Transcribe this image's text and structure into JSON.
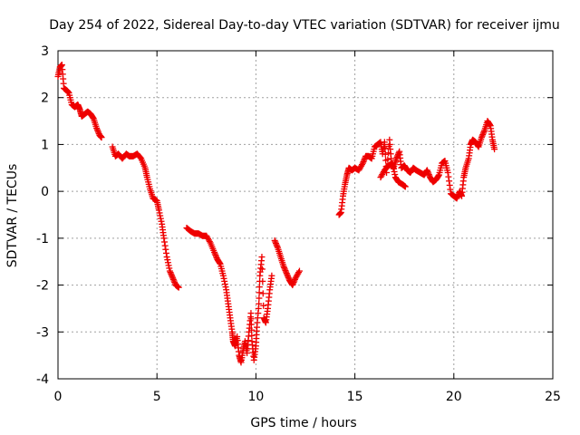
{
  "chart_data": {
    "type": "scatter",
    "title": "Day 254 of 2022, Sidereal Day-to-day VTEC variation (SDTVAR) for receiver ijmu",
    "xlabel": "GPS time / hours",
    "ylabel": "SDTVAR / TECUs",
    "xlim": [
      0,
      25
    ],
    "ylim": [
      -4,
      3
    ],
    "x_ticks": [
      "0",
      "5",
      "10",
      "15",
      "20",
      "25"
    ],
    "y_ticks": [
      "3",
      "2",
      "1",
      "0",
      "-1",
      "-2",
      "-3",
      "-4"
    ],
    "grid": true,
    "marker": "+",
    "color": "#ee0000",
    "series": [
      {
        "name": "segment-1",
        "points": [
          [
            0.0,
            2.45
          ],
          [
            0.1,
            2.65
          ],
          [
            0.2,
            2.7
          ],
          [
            0.3,
            2.2
          ],
          [
            0.45,
            2.15
          ],
          [
            0.55,
            2.1
          ],
          [
            0.7,
            1.85
          ],
          [
            0.85,
            1.8
          ],
          [
            1.0,
            1.85
          ],
          [
            1.1,
            1.75
          ],
          [
            1.2,
            1.6
          ],
          [
            1.35,
            1.65
          ],
          [
            1.5,
            1.7
          ],
          [
            1.65,
            1.65
          ],
          [
            1.8,
            1.55
          ],
          [
            1.95,
            1.35
          ],
          [
            2.1,
            1.2
          ],
          [
            2.2,
            1.15
          ]
        ]
      },
      {
        "name": "segment-2",
        "points": [
          [
            2.75,
            0.95
          ],
          [
            2.9,
            0.75
          ],
          [
            3.05,
            0.8
          ],
          [
            3.25,
            0.7
          ],
          [
            3.45,
            0.8
          ],
          [
            3.6,
            0.75
          ],
          [
            3.8,
            0.75
          ],
          [
            4.0,
            0.8
          ],
          [
            4.2,
            0.7
          ],
          [
            4.4,
            0.5
          ],
          [
            4.5,
            0.3
          ],
          [
            4.65,
            0.05
          ],
          [
            4.8,
            -0.15
          ],
          [
            5.0,
            -0.2
          ],
          [
            5.1,
            -0.4
          ],
          [
            5.25,
            -0.7
          ],
          [
            5.35,
            -1.0
          ],
          [
            5.5,
            -1.4
          ],
          [
            5.65,
            -1.7
          ],
          [
            5.8,
            -1.85
          ],
          [
            5.95,
            -2.0
          ],
          [
            6.1,
            -2.05
          ]
        ]
      },
      {
        "name": "segment-3",
        "points": [
          [
            6.5,
            -0.78
          ],
          [
            6.7,
            -0.85
          ],
          [
            6.9,
            -0.9
          ],
          [
            7.1,
            -0.9
          ],
          [
            7.3,
            -0.95
          ],
          [
            7.5,
            -0.95
          ],
          [
            7.7,
            -1.1
          ],
          [
            7.9,
            -1.3
          ],
          [
            8.05,
            -1.45
          ],
          [
            8.2,
            -1.55
          ],
          [
            8.35,
            -1.8
          ],
          [
            8.5,
            -2.1
          ],
          [
            8.6,
            -2.4
          ],
          [
            8.7,
            -2.7
          ],
          [
            8.8,
            -3.0
          ],
          [
            8.85,
            -3.2
          ],
          [
            8.95,
            -3.3
          ],
          [
            9.05,
            -3.1
          ],
          [
            9.15,
            -3.5
          ],
          [
            9.25,
            -3.65
          ],
          [
            9.35,
            -3.4
          ],
          [
            9.45,
            -3.2
          ],
          [
            9.55,
            -3.45
          ],
          [
            9.65,
            -3.0
          ],
          [
            9.75,
            -2.6
          ],
          [
            9.8,
            -3.2
          ],
          [
            9.9,
            -3.6
          ],
          [
            10.0,
            -3.3
          ],
          [
            10.05,
            -2.9
          ],
          [
            10.15,
            -2.4
          ],
          [
            10.2,
            -1.8
          ],
          [
            10.3,
            -1.4
          ],
          [
            10.4,
            -2.7
          ],
          [
            10.5,
            -2.8
          ],
          [
            10.6,
            -2.5
          ],
          [
            10.7,
            -2.1
          ],
          [
            10.8,
            -1.8
          ]
        ]
      },
      {
        "name": "segment-4",
        "points": [
          [
            10.95,
            -1.05
          ],
          [
            11.1,
            -1.2
          ],
          [
            11.25,
            -1.4
          ],
          [
            11.4,
            -1.6
          ],
          [
            11.55,
            -1.75
          ],
          [
            11.7,
            -1.9
          ],
          [
            11.85,
            -2.0
          ],
          [
            12.0,
            -1.85
          ],
          [
            12.2,
            -1.7
          ]
        ]
      },
      {
        "name": "segment-5",
        "points": [
          [
            14.2,
            -0.5
          ],
          [
            14.3,
            -0.45
          ],
          [
            14.4,
            -0.1
          ],
          [
            14.5,
            0.15
          ],
          [
            14.6,
            0.35
          ],
          [
            14.7,
            0.5
          ],
          [
            14.85,
            0.45
          ],
          [
            15.0,
            0.5
          ],
          [
            15.2,
            0.45
          ],
          [
            15.4,
            0.6
          ],
          [
            15.55,
            0.75
          ],
          [
            15.7,
            0.75
          ],
          [
            15.85,
            0.7
          ],
          [
            16.0,
            0.95
          ],
          [
            16.15,
            1.0
          ],
          [
            16.3,
            1.05
          ],
          [
            16.4,
            0.8
          ],
          [
            16.5,
            1.05
          ],
          [
            16.6,
            0.4
          ],
          [
            16.75,
            1.1
          ],
          [
            16.85,
            0.6
          ],
          [
            16.95,
            0.5
          ],
          [
            17.1,
            0.7
          ],
          [
            17.25,
            0.85
          ],
          [
            17.35,
            0.5
          ],
          [
            17.5,
            0.55
          ],
          [
            17.65,
            0.45
          ],
          [
            17.8,
            0.4
          ],
          [
            17.95,
            0.5
          ],
          [
            18.1,
            0.45
          ],
          [
            18.3,
            0.4
          ],
          [
            18.5,
            0.35
          ],
          [
            18.65,
            0.45
          ],
          [
            18.8,
            0.3
          ],
          [
            18.95,
            0.2
          ],
          [
            19.1,
            0.25
          ],
          [
            19.25,
            0.35
          ],
          [
            19.4,
            0.6
          ],
          [
            19.55,
            0.65
          ],
          [
            19.7,
            0.4
          ],
          [
            19.85,
            -0.05
          ],
          [
            20.0,
            -0.1
          ],
          [
            20.15,
            -0.15
          ],
          [
            20.3,
            0.0
          ],
          [
            20.4,
            -0.1
          ],
          [
            20.5,
            0.3
          ],
          [
            20.6,
            0.5
          ],
          [
            20.75,
            0.7
          ],
          [
            20.85,
            1.0
          ],
          [
            20.95,
            1.1
          ],
          [
            21.1,
            1.05
          ],
          [
            21.25,
            0.95
          ],
          [
            21.4,
            1.15
          ],
          [
            21.55,
            1.3
          ],
          [
            21.7,
            1.5
          ],
          [
            21.85,
            1.4
          ],
          [
            21.95,
            1.1
          ],
          [
            22.05,
            0.9
          ]
        ]
      },
      {
        "name": "segment-6",
        "points": [
          [
            16.3,
            0.3
          ],
          [
            16.5,
            0.45
          ],
          [
            16.7,
            0.55
          ],
          [
            16.9,
            0.6
          ],
          [
            17.05,
            0.3
          ],
          [
            17.2,
            0.2
          ],
          [
            17.4,
            0.15
          ],
          [
            17.55,
            0.1
          ]
        ]
      }
    ]
  }
}
